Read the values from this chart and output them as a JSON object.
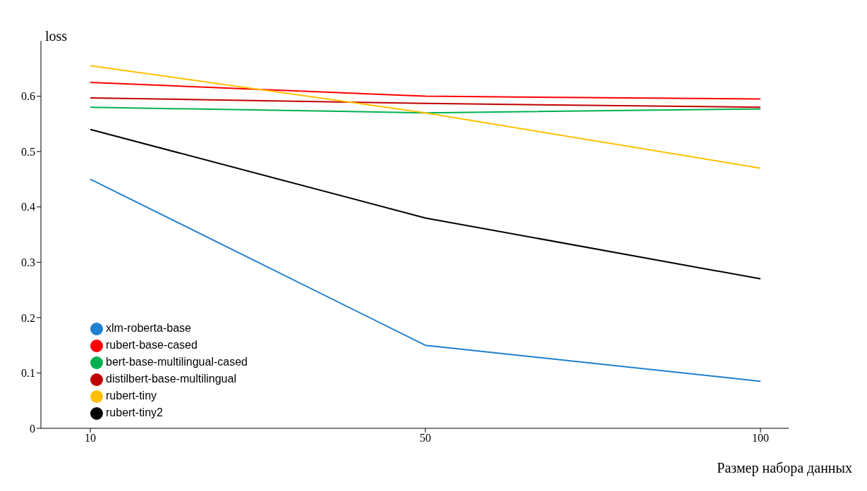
{
  "chart_data": {
    "type": "line",
    "xlabel": "Размер набора данных",
    "ylabel": "loss",
    "categories": [
      "10",
      "50",
      "100"
    ],
    "ylim": [
      0,
      0.7
    ],
    "yticks": [
      0,
      0.1,
      0.2,
      0.3,
      0.4,
      0.5,
      0.6
    ],
    "legend": "bottom left",
    "marker": "none",
    "grid": false,
    "series": [
      {
        "name": "xlm-roberta-base",
        "color": "#1f7fd0",
        "values": [
          0.45,
          0.15,
          0.085
        ]
      },
      {
        "name": "rubert-base-cased",
        "color": "#ff0000",
        "values": [
          0.625,
          0.6,
          0.595
        ]
      },
      {
        "name": "bert-base-multilingual-cased",
        "color": "#00b050",
        "values": [
          0.58,
          0.57,
          0.577
        ]
      },
      {
        "name": "distilbert-base-multilingual",
        "color": "#c00000",
        "values": [
          0.597,
          0.587,
          0.58
        ]
      },
      {
        "name": "rubert-tiny",
        "color": "#ffc000",
        "values": [
          0.655,
          0.57,
          0.47
        ]
      },
      {
        "name": "rubert-tiny2",
        "color": "#000000",
        "values": [
          0.54,
          0.38,
          0.27
        ]
      }
    ]
  }
}
